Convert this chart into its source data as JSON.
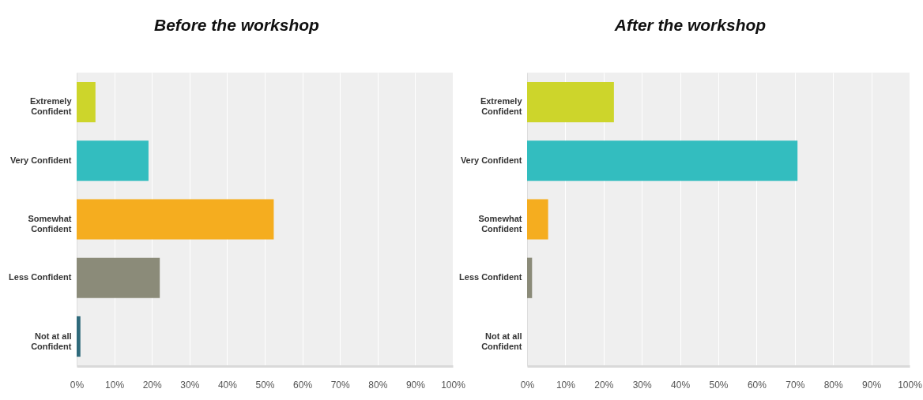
{
  "chart_data": [
    {
      "type": "bar",
      "orientation": "horizontal",
      "title": "Before the workshop",
      "categories": [
        "Extremely Confident",
        "Very Confident",
        "Somewhat Confident",
        "Less Confident",
        "Not at all Confident"
      ],
      "values": [
        5.0,
        19.1,
        52.4,
        22.1,
        1.0
      ],
      "colors": [
        "#cdd52b",
        "#33bdbf",
        "#f5ad1f",
        "#8b8b79",
        "#2f6a7b"
      ],
      "xlim": [
        0,
        100
      ],
      "xticks": [
        {
          "value": 0,
          "label": "0%"
        },
        {
          "value": 10,
          "label": "10%"
        },
        {
          "value": 20,
          "label": "20%"
        },
        {
          "value": 30,
          "label": "30%"
        },
        {
          "value": 40,
          "label": "40%"
        },
        {
          "value": 50,
          "label": "50%"
        },
        {
          "value": 60,
          "label": "60%"
        },
        {
          "value": 70,
          "label": "70%"
        },
        {
          "value": 80,
          "label": "80%"
        },
        {
          "value": 90,
          "label": "90%"
        },
        {
          "value": 100,
          "label": "100%"
        }
      ],
      "grid": "x"
    },
    {
      "type": "bar",
      "orientation": "horizontal",
      "title": "After the workshop",
      "categories": [
        "Extremely Confident",
        "Very Confident",
        "Somewhat Confident",
        "Less Confident",
        "Not at all Confident"
      ],
      "values": [
        22.7,
        70.7,
        5.5,
        1.3,
        0
      ],
      "colors": [
        "#cdd52b",
        "#33bdbf",
        "#f5ad1f",
        "#8b8b79",
        "#2f6a7b"
      ],
      "xlim": [
        0,
        100
      ],
      "xticks": [
        {
          "value": 0,
          "label": "0%"
        },
        {
          "value": 10,
          "label": "10%"
        },
        {
          "value": 20,
          "label": "20%"
        },
        {
          "value": 30,
          "label": "30%"
        },
        {
          "value": 40,
          "label": "40%"
        },
        {
          "value": 50,
          "label": "50%"
        },
        {
          "value": 60,
          "label": "60%"
        },
        {
          "value": 70,
          "label": "70%"
        },
        {
          "value": 80,
          "label": "80%"
        },
        {
          "value": 90,
          "label": "90%"
        },
        {
          "value": 100,
          "label": "100%"
        }
      ],
      "grid": "x"
    }
  ]
}
